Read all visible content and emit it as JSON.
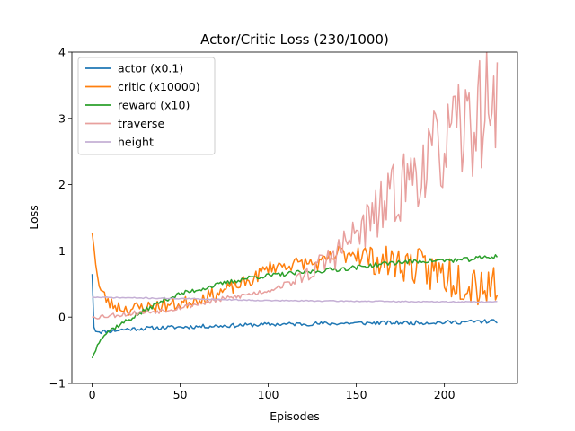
{
  "chart_data": {
    "type": "line",
    "title": "Actor/Critic Loss (230/1000)",
    "xlabel": "Episodes",
    "ylabel": "Loss",
    "xlim": [
      -11.5,
      241.5
    ],
    "ylim": [
      -1,
      4
    ],
    "xticks": [
      0,
      50,
      100,
      150,
      200
    ],
    "yticks": [
      -1,
      0,
      1,
      2,
      3,
      4
    ],
    "grid": false,
    "legend_position": "upper left",
    "x_points": 231,
    "series": [
      {
        "name": "actor (x0.1)",
        "color": "#1f77b4",
        "keypoints": [
          [
            0,
            0.65
          ],
          [
            1,
            -0.15
          ],
          [
            2,
            -0.2
          ],
          [
            5,
            -0.22
          ],
          [
            10,
            -0.21
          ],
          [
            20,
            -0.18
          ],
          [
            50,
            -0.15
          ],
          [
            100,
            -0.11
          ],
          [
            150,
            -0.09
          ],
          [
            200,
            -0.08
          ],
          [
            230,
            -0.06
          ]
        ],
        "noise": 0.03,
        "seed": 11
      },
      {
        "name": "critic (x10000)",
        "color": "#ff7f0e",
        "keypoints": [
          [
            0,
            1.27
          ],
          [
            2,
            0.85
          ],
          [
            4,
            0.45
          ],
          [
            6,
            0.35
          ],
          [
            10,
            0.2
          ],
          [
            20,
            0.12
          ],
          [
            30,
            0.15
          ],
          [
            50,
            0.2
          ],
          [
            70,
            0.35
          ],
          [
            90,
            0.55
          ],
          [
            100,
            0.75
          ],
          [
            120,
            0.82
          ],
          [
            130,
            0.8
          ],
          [
            140,
            0.95
          ],
          [
            150,
            1.0
          ],
          [
            160,
            0.85
          ],
          [
            180,
            0.8
          ],
          [
            190,
            0.7
          ],
          [
            200,
            0.65
          ],
          [
            210,
            0.6
          ],
          [
            220,
            0.55
          ],
          [
            230,
            0.45
          ]
        ],
        "noise": 0.1,
        "noise_growth": [
          125,
          0.35
        ],
        "seed": 23
      },
      {
        "name": "reward (x10)",
        "color": "#2ca02c",
        "keypoints": [
          [
            0,
            -0.62
          ],
          [
            5,
            -0.3
          ],
          [
            10,
            -0.2
          ],
          [
            20,
            -0.05
          ],
          [
            30,
            0.1
          ],
          [
            40,
            0.25
          ],
          [
            50,
            0.35
          ],
          [
            70,
            0.48
          ],
          [
            90,
            0.6
          ],
          [
            110,
            0.65
          ],
          [
            130,
            0.7
          ],
          [
            150,
            0.75
          ],
          [
            170,
            0.82
          ],
          [
            190,
            0.85
          ],
          [
            210,
            0.86
          ],
          [
            230,
            0.92
          ]
        ],
        "noise": 0.035,
        "seed": 37
      },
      {
        "name": "traverse",
        "color": "#e8a09e",
        "keypoints": [
          [
            0,
            0.0
          ],
          [
            20,
            0.05
          ],
          [
            40,
            0.1
          ],
          [
            60,
            0.2
          ],
          [
            80,
            0.3
          ],
          [
            100,
            0.4
          ],
          [
            115,
            0.55
          ],
          [
            125,
            0.7
          ],
          [
            140,
            1.0
          ],
          [
            160,
            1.5
          ],
          [
            180,
            2.1
          ],
          [
            200,
            2.6
          ],
          [
            215,
            2.9
          ],
          [
            230,
            3.4
          ]
        ],
        "noise": 0.04,
        "noise_growth": [
          110,
          0.9
        ],
        "seed": 53
      },
      {
        "name": "height",
        "color": "#c5b0d5",
        "keypoints": [
          [
            0,
            0.3
          ],
          [
            50,
            0.28
          ],
          [
            100,
            0.25
          ],
          [
            150,
            0.24
          ],
          [
            200,
            0.23
          ],
          [
            230,
            0.23
          ]
        ],
        "noise": 0.008,
        "seed": 71
      }
    ]
  }
}
